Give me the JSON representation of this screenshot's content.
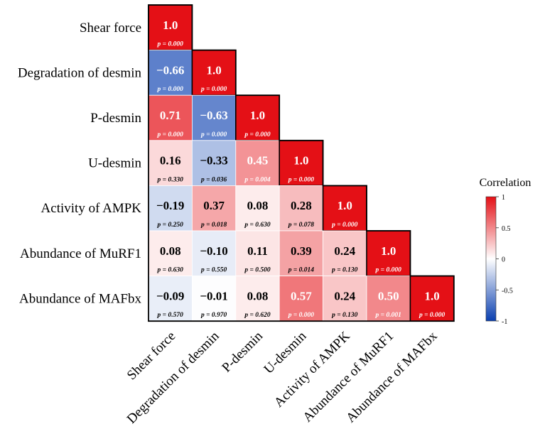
{
  "chart_data": {
    "type": "heatmap",
    "variables": [
      "Shear force",
      "Degradation of desmin",
      "P-desmin",
      "U-desmin",
      "Activity of AMPK",
      "Abundance of MuRF1",
      "Abundance of  MAFbx"
    ],
    "correlations": [
      [
        "1.0",
        null,
        null,
        null,
        null,
        null,
        null
      ],
      [
        "−0.66",
        "1.0",
        null,
        null,
        null,
        null,
        null
      ],
      [
        "0.71",
        "−0.63",
        "1.0",
        null,
        null,
        null,
        null
      ],
      [
        "0.16",
        "−0.33",
        "0.45",
        "1.0",
        null,
        null,
        null
      ],
      [
        "−0.19",
        "0.37",
        "0.08",
        "0.28",
        "1.0",
        null,
        null
      ],
      [
        "0.08",
        "−0.10",
        "0.11",
        "0.39",
        "0.24",
        "1.0",
        null
      ],
      [
        "−0.09",
        "−0.01",
        "0.08",
        "0.57",
        "0.24",
        "0.50",
        "1.0"
      ]
    ],
    "p_values": [
      [
        "p = 0.000",
        null,
        null,
        null,
        null,
        null,
        null
      ],
      [
        "p = 0.000",
        "p = 0.000",
        null,
        null,
        null,
        null,
        null
      ],
      [
        "p = 0.000",
        "p = 0.000",
        "p = 0.000",
        null,
        null,
        null,
        null
      ],
      [
        "p = 0.330",
        "p = 0.036",
        "p = 0.004",
        "p = 0.000",
        null,
        null,
        null
      ],
      [
        "p = 0.250",
        "p = 0.018",
        "p = 0.630",
        "p = 0.078",
        "p = 0.000",
        null,
        null
      ],
      [
        "p = 0.630",
        "p = 0.550",
        "p = 0.500",
        "p = 0.014",
        "p = 0.130",
        "p = 0.000",
        null
      ],
      [
        "p = 0.570",
        "p = 0.970",
        "p = 0.620",
        "p = 0.000",
        "p = 0.130",
        "p = 0.001",
        "p = 0.000"
      ]
    ],
    "legend": {
      "title": "Correlation",
      "ticks": [
        "1",
        "0.5",
        "0",
        "-0.5",
        "-1"
      ],
      "tick_values": [
        1,
        0.5,
        0,
        -0.5,
        -1
      ],
      "range": [
        -1,
        1
      ],
      "colors": {
        "negative": "#0a3fb0",
        "neutral": "#ffffff",
        "positive": "#e41016"
      }
    }
  }
}
